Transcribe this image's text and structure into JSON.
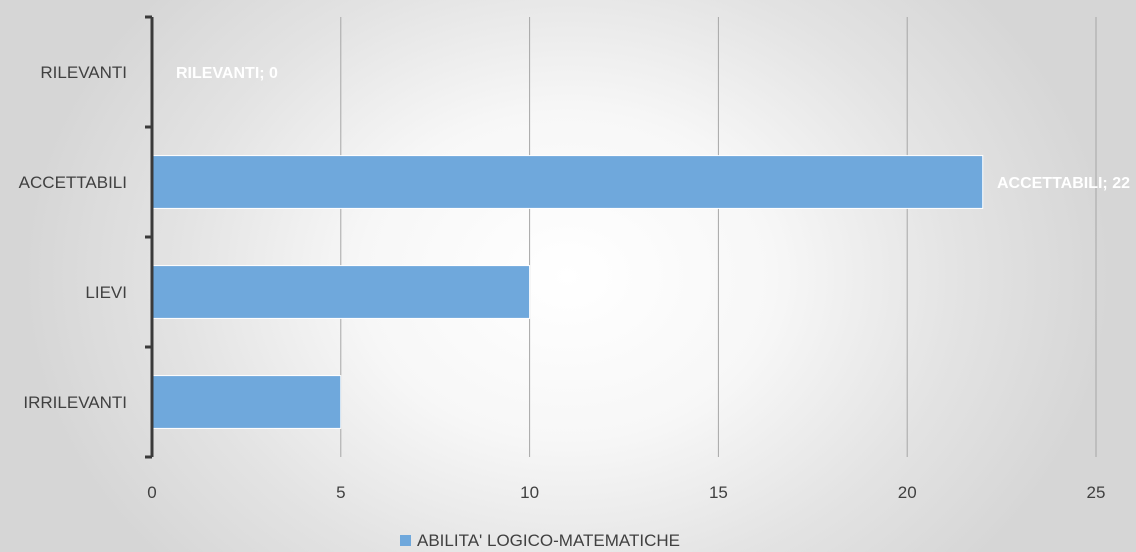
{
  "chart_data": {
    "type": "bar",
    "orientation": "horizontal",
    "categories": [
      "RILEVANTI",
      "ACCETTABILI",
      "LIEVI",
      "IRRILEVANTI"
    ],
    "series": [
      {
        "name": "ABILITA' LOGICO-MATEMATICHE",
        "values": [
          0,
          22,
          10,
          5
        ],
        "color": "#6fa8dc"
      }
    ],
    "xlim": [
      0,
      25
    ],
    "xticks": [
      "0",
      "5",
      "10",
      "15",
      "20",
      "25"
    ],
    "data_labels": [
      {
        "category": "RILEVANTI",
        "text": "RILEVANTI; 0"
      },
      {
        "category": "ACCETTABILI",
        "text": "ACCETTABILI; 22"
      }
    ],
    "grid": true,
    "legend": "bottom-center"
  }
}
